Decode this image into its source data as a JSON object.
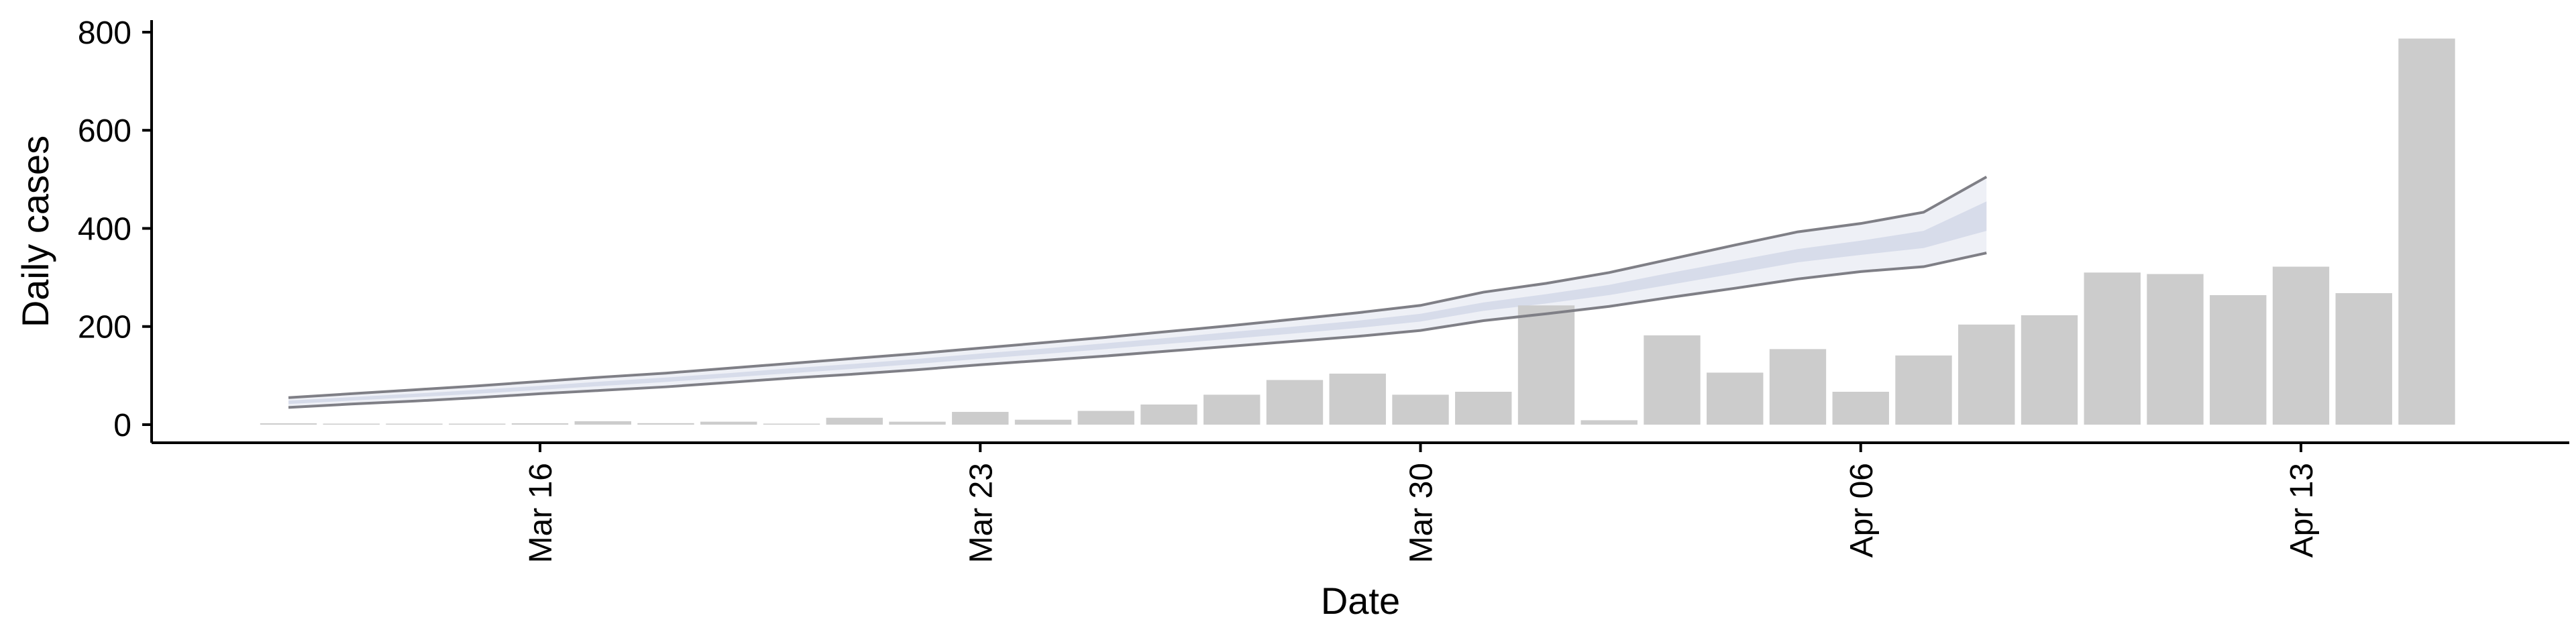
{
  "chart_data": {
    "type": "bar",
    "xlabel": "Date",
    "ylabel": "Daily cases",
    "ylim": [
      0,
      800
    ],
    "y_ticks": [
      "0",
      "200",
      "400",
      "600",
      "800"
    ],
    "x_ticks": [
      {
        "date": "2020-03-16",
        "label": "Mar 16"
      },
      {
        "date": "2020-03-23",
        "label": "Mar 23"
      },
      {
        "date": "2020-03-30",
        "label": "Mar 30"
      },
      {
        "date": "2020-04-06",
        "label": "Apr 06"
      },
      {
        "date": "2020-04-13",
        "label": "Apr 13"
      }
    ],
    "grid": false,
    "bars": {
      "color": "#cccccc",
      "dates": [
        "2020-03-12",
        "2020-03-13",
        "2020-03-14",
        "2020-03-15",
        "2020-03-16",
        "2020-03-17",
        "2020-03-18",
        "2020-03-19",
        "2020-03-20",
        "2020-03-21",
        "2020-03-22",
        "2020-03-23",
        "2020-03-24",
        "2020-03-25",
        "2020-03-26",
        "2020-03-27",
        "2020-03-28",
        "2020-03-29",
        "2020-03-30",
        "2020-03-31",
        "2020-04-01",
        "2020-04-02",
        "2020-04-03",
        "2020-04-04",
        "2020-04-05",
        "2020-04-06",
        "2020-04-07",
        "2020-04-08",
        "2020-04-09",
        "2020-04-10",
        "2020-04-11",
        "2020-04-12",
        "2020-04-13",
        "2020-04-14",
        "2020-04-15",
        "2020-04-16",
        "2020-04-17"
      ],
      "values": [
        2,
        0,
        0,
        0,
        1,
        7,
        3,
        6,
        0,
        14,
        6,
        26,
        10,
        28,
        41,
        61,
        91,
        104,
        61,
        67,
        243,
        9,
        182,
        106,
        154,
        67,
        141,
        204,
        223,
        310,
        307,
        264,
        322,
        268,
        787,
        null,
        null
      ]
    },
    "forecast": {
      "band_color": "#cdd3e6",
      "line_color": "#7f7f86",
      "dates": [
        "2020-03-12",
        "2020-03-13",
        "2020-03-14",
        "2020-03-15",
        "2020-03-16",
        "2020-03-17",
        "2020-03-18",
        "2020-03-19",
        "2020-03-20",
        "2020-03-21",
        "2020-03-22",
        "2020-03-23",
        "2020-03-24",
        "2020-03-25",
        "2020-03-26",
        "2020-03-27",
        "2020-03-28",
        "2020-03-29",
        "2020-03-30",
        "2020-03-31",
        "2020-04-01",
        "2020-04-02",
        "2020-04-03",
        "2020-04-04",
        "2020-04-05",
        "2020-04-06",
        "2020-04-07",
        "2020-04-08"
      ],
      "lower": [
        35,
        42,
        48,
        55,
        63,
        70,
        77,
        86,
        95,
        103,
        112,
        122,
        131,
        140,
        150,
        160,
        170,
        180,
        192,
        212,
        226,
        241,
        260,
        278,
        297,
        312,
        322,
        350
      ],
      "upper": [
        55,
        63,
        71,
        79,
        88,
        97,
        105,
        115,
        125,
        135,
        145,
        156,
        167,
        178,
        190,
        202,
        215,
        228,
        243,
        270,
        288,
        310,
        338,
        366,
        393,
        410,
        433,
        505
      ],
      "inner_lower": [
        42,
        49,
        56,
        63,
        71,
        79,
        87,
        96,
        105,
        114,
        124,
        134,
        144,
        154,
        165,
        175,
        186,
        197,
        210,
        232,
        247,
        264,
        286,
        308,
        331,
        346,
        360,
        395
      ],
      "inner_upper": [
        49,
        56,
        63,
        71,
        79,
        88,
        96,
        105,
        115,
        124,
        134,
        145,
        155,
        166,
        177,
        189,
        200,
        212,
        226,
        249,
        266,
        285,
        310,
        334,
        358,
        375,
        395,
        455
      ]
    }
  }
}
